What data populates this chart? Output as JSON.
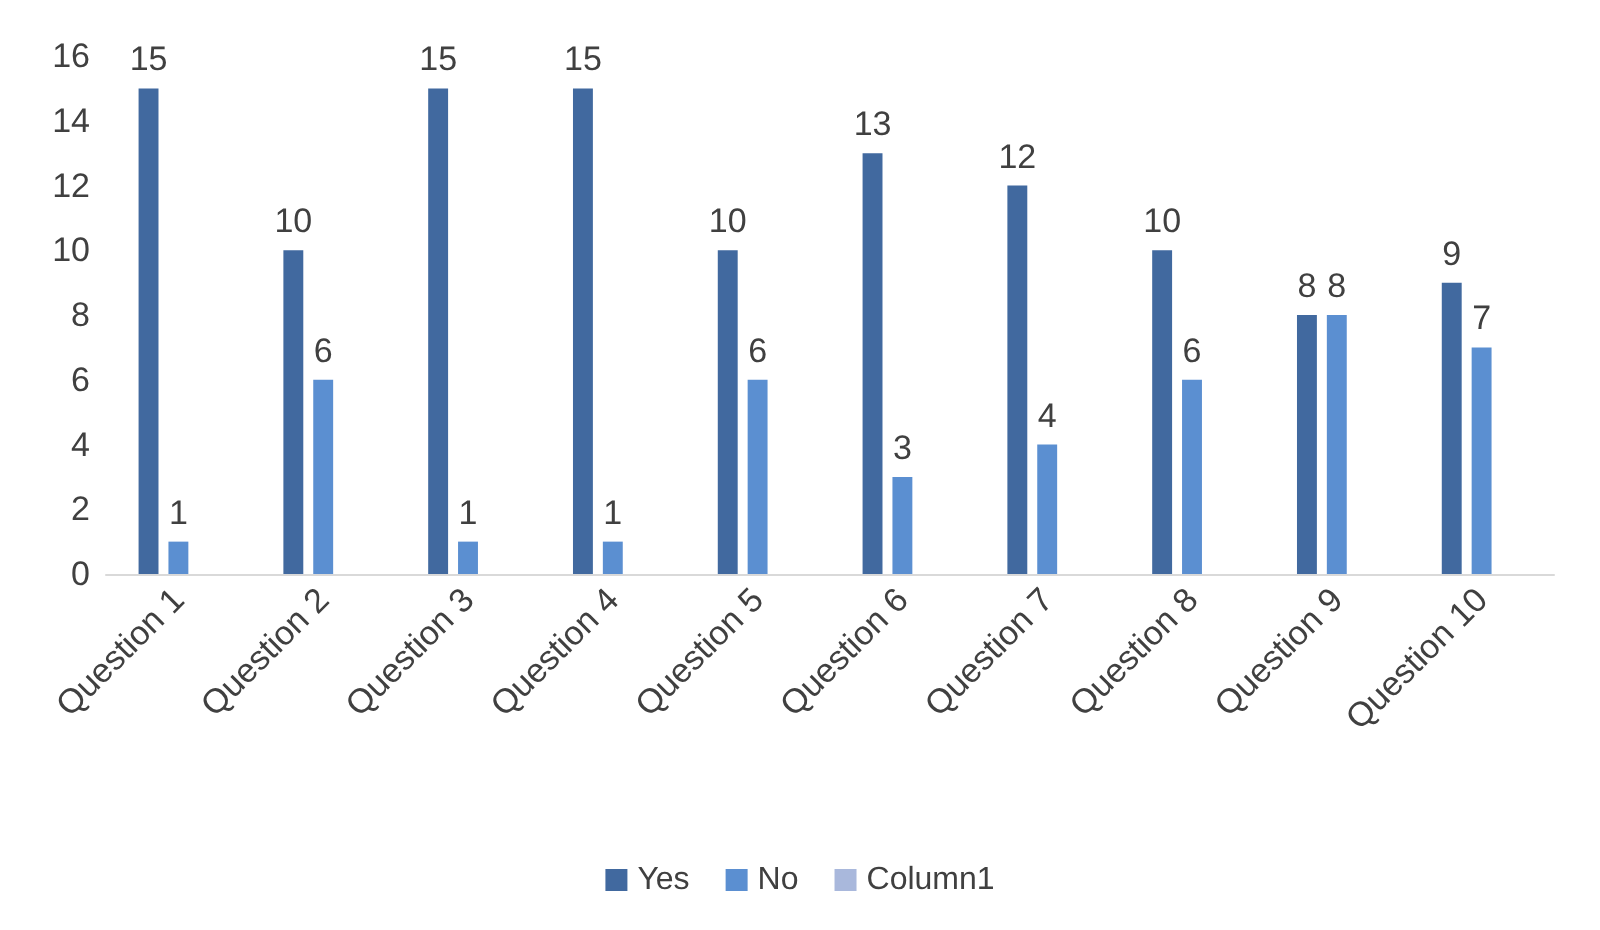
{
  "chart_data": {
    "type": "bar",
    "categories": [
      "Question 1",
      "Question 2",
      "Question 3",
      "Question 4",
      "Question 5",
      "Question 6",
      "Question 7",
      "Question 8",
      "Question 9",
      "Question 10"
    ],
    "series": [
      {
        "name": "Yes",
        "color": "#41699f",
        "values": [
          15,
          10,
          15,
          15,
          10,
          13,
          12,
          10,
          8,
          9
        ]
      },
      {
        "name": "No",
        "color": "#5b8fd1",
        "values": [
          1,
          6,
          1,
          1,
          6,
          3,
          4,
          6,
          8,
          7
        ]
      },
      {
        "name": "Column1",
        "color": "#a9b8dc",
        "values": [
          null,
          null,
          null,
          null,
          null,
          null,
          null,
          null,
          null,
          null
        ]
      }
    ],
    "ylim": [
      0,
      16
    ],
    "yticks": [
      0,
      2,
      4,
      6,
      8,
      10,
      12,
      14,
      16
    ],
    "grid": false,
    "legend": "bottom",
    "data_labels": true
  }
}
